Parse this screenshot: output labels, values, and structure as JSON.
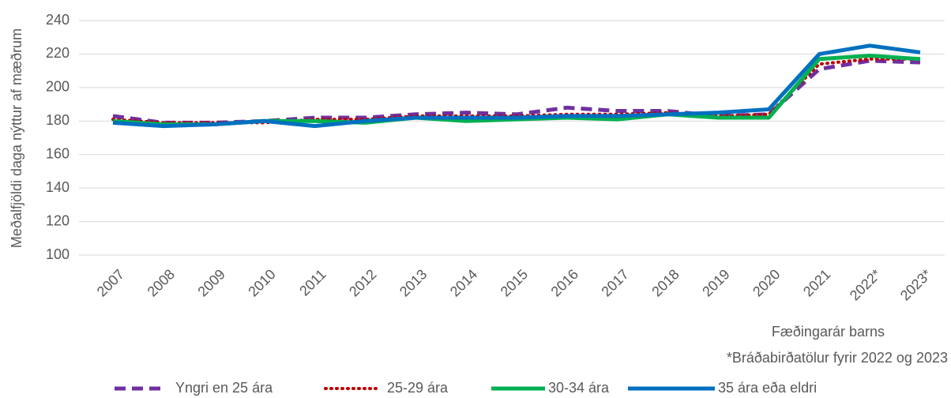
{
  "chart_data": {
    "type": "line",
    "y_label": "Meðalfjöldi daga nýttur af mæðrum",
    "x_label": "Fæðingarár barns",
    "note": "*Bráðabirðatölur fyrir 2022 og 2023",
    "categories": [
      "2007",
      "2008",
      "2009",
      "2010",
      "2011",
      "2012",
      "2013",
      "2014",
      "2015",
      "2016",
      "2017",
      "2018",
      "2019",
      "2020",
      "2021",
      "2022*",
      "2023*"
    ],
    "series": [
      {
        "name": "Yngri en 25 ára",
        "color": "#7030a0",
        "style": "dashed",
        "values": [
          183,
          179,
          179,
          180,
          182,
          182,
          184,
          185,
          184,
          188,
          186,
          186,
          183,
          184,
          211,
          216,
          215
        ]
      },
      {
        "name": "25-29 ára",
        "color": "#c00000",
        "style": "dotted",
        "values": [
          181,
          179,
          179,
          179,
          181,
          181,
          183,
          183,
          183,
          184,
          184,
          185,
          183,
          184,
          214,
          217,
          217
        ]
      },
      {
        "name": "30-34 ára",
        "color": "#00b050",
        "style": "solid",
        "values": [
          180,
          178,
          178,
          180,
          180,
          179,
          182,
          180,
          181,
          182,
          181,
          184,
          182,
          182,
          217,
          219,
          217
        ]
      },
      {
        "name": "35 ára eða eldri",
        "color": "#0070c0",
        "style": "solid",
        "values": [
          179,
          177,
          178,
          180,
          177,
          180,
          182,
          182,
          182,
          183,
          183,
          184,
          185,
          187,
          220,
          225,
          221
        ]
      }
    ],
    "ylim": [
      100,
      240
    ],
    "yticks": [
      100,
      120,
      140,
      160,
      180,
      200,
      220,
      240
    ],
    "grid": true,
    "legend": "bottom"
  }
}
